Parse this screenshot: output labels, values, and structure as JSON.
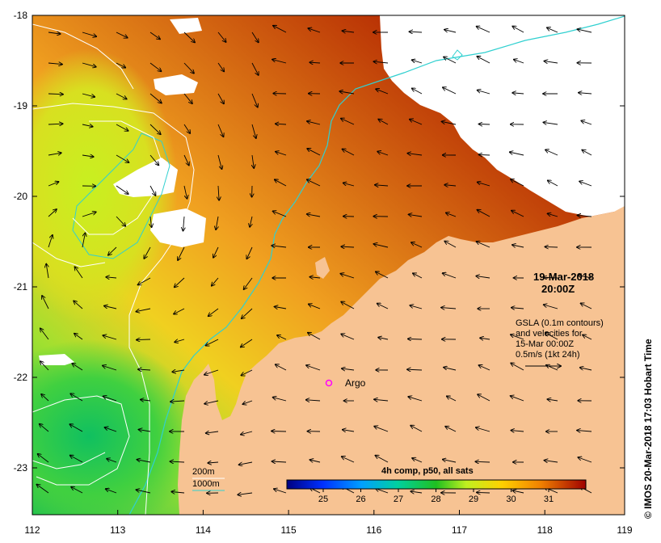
{
  "map": {
    "lat_labels": [
      "-18",
      "-19",
      "-20",
      "-21",
      "-22",
      "-23"
    ],
    "lon_labels": [
      "112",
      "113",
      "114",
      "115",
      "116",
      "117",
      "118",
      "119"
    ],
    "date_label": "19-Mar-2018",
    "time_label": "20:00Z",
    "info_lines": [
      "GSLA (0.1m contours)",
      "and velocities for",
      "15-Mar 00:00Z",
      "0.5m/s (1kt 24h)"
    ],
    "argo_label": "Argo",
    "legend_200m": "200m",
    "legend_1000m": "1000m",
    "colorbar_title": "4h comp, p50, all sats",
    "colorbar_ticks": [
      "25",
      "26",
      "27",
      "28",
      "29",
      "30",
      "31"
    ],
    "credit": "© IMOS 20-Mar-2018 17:03 Hobart Time",
    "colors": {
      "land": "#f7c393",
      "argo": "#ff00ff",
      "isobath_1000m": "#30d0d0",
      "isobath_200m": "#ffffff"
    }
  }
}
